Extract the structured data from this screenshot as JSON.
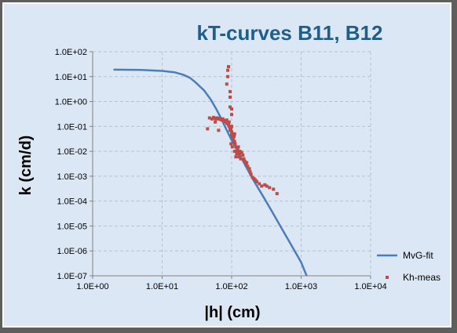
{
  "chart_data": {
    "type": "scatter",
    "title": "kT-curves B11, B12",
    "xlabel": "|h|  (cm)",
    "ylabel": "k (cm/d)",
    "xscale": "log",
    "yscale": "log",
    "xlim": [
      1,
      10000
    ],
    "ylim": [
      1e-07,
      100
    ],
    "x_ticks": [
      "1.0E+00",
      "1.0E+01",
      "1.0E+02",
      "1.0E+03",
      "1.0E+04"
    ],
    "y_ticks": [
      "1.0E-07",
      "1.0E-06",
      "1.0E-05",
      "1.0E-04",
      "1.0E-03",
      "1.0E-02",
      "1.0E-01",
      "1.0E+00",
      "1.0E+01",
      "1.0E+02"
    ],
    "grid": "dashed",
    "legend_position": "right",
    "colors": {
      "line": "#4a7ebb",
      "points": "#be4b48"
    },
    "series": [
      {
        "name": "MvG-fit",
        "kind": "line",
        "x": [
          2,
          5,
          10,
          15,
          20,
          25,
          30,
          40,
          50,
          60,
          70,
          80,
          100,
          150,
          200,
          300,
          400,
          500,
          700,
          1000,
          1200
        ],
        "y": [
          19,
          18.5,
          17,
          15,
          12,
          9,
          6,
          2.8,
          1.2,
          0.5,
          0.22,
          0.1,
          0.028,
          0.0035,
          0.0008,
          0.00012,
          3e-05,
          1e-05,
          2e-06,
          3.5e-07,
          1e-07
        ]
      },
      {
        "name": "Kh-meas",
        "kind": "scatter",
        "x": [
          45,
          48,
          52,
          55,
          58,
          60,
          62,
          65,
          68,
          70,
          72,
          75,
          78,
          80,
          82,
          85,
          85,
          86,
          88,
          88,
          90,
          90,
          92,
          92,
          95,
          95,
          95,
          98,
          100,
          100,
          100,
          102,
          105,
          105,
          108,
          110,
          110,
          112,
          115,
          115,
          118,
          120,
          122,
          125,
          128,
          130,
          132,
          135,
          140,
          145,
          150,
          155,
          160,
          165,
          170,
          180,
          185,
          190,
          200,
          210,
          220,
          230,
          250,
          270,
          300,
          320,
          350,
          400,
          450,
          95,
          100,
          110,
          95,
          100,
          105,
          98,
          102,
          65,
          58
        ],
        "y": [
          0.08,
          0.22,
          0.2,
          0.23,
          0.21,
          0.2,
          0.22,
          0.2,
          0.21,
          0.19,
          0.18,
          0.2,
          0.17,
          0.16,
          0.15,
          0.18,
          5,
          0.13,
          18,
          10,
          25,
          0.12,
          0.1,
          0.15,
          0.6,
          1.5,
          0.09,
          0.08,
          0.1,
          0.3,
          0.06,
          0.04,
          0.05,
          0.03,
          0.04,
          0.025,
          0.01,
          0.02,
          0.015,
          0.006,
          0.008,
          0.01,
          0.012,
          0.015,
          0.006,
          0.008,
          0.01,
          0.005,
          0.009,
          0.007,
          0.005,
          0.004,
          0.003,
          0.0035,
          0.0025,
          0.002,
          0.0015,
          0.0012,
          0.0009,
          0.0008,
          0.0007,
          0.0006,
          0.0005,
          0.0004,
          0.00045,
          0.0004,
          0.00035,
          0.0003,
          0.0002,
          2.5,
          0.5,
          0.05,
          0.07,
          0.045,
          0.035,
          0.02,
          0.015,
          0.07,
          0.15
        ]
      }
    ]
  }
}
